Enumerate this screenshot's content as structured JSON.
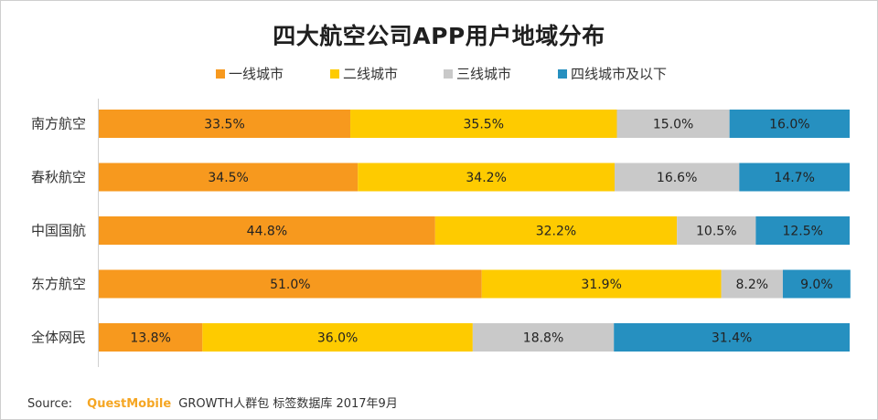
{
  "chart_data": {
    "type": "bar",
    "orientation": "horizontal",
    "stacked": true,
    "normalized": true,
    "title": "四大航空公司APP用户地域分布",
    "xlabel": "",
    "ylabel": "",
    "xlim": [
      0,
      100
    ],
    "grid": false,
    "legend_position": "top",
    "categories": [
      "南方航空",
      "春秋航空",
      "中国国航",
      "东方航空",
      "全体网民"
    ],
    "series": [
      {
        "name": "一线城市",
        "color": "#f7991e",
        "values": [
          33.5,
          34.5,
          44.8,
          51.0,
          13.8
        ]
      },
      {
        "name": "二线城市",
        "color": "#fecb00",
        "values": [
          35.5,
          34.2,
          32.2,
          31.9,
          36.0
        ]
      },
      {
        "name": "三线城市",
        "color": "#c9c9c9",
        "values": [
          15.0,
          16.6,
          10.5,
          8.2,
          18.8
        ]
      },
      {
        "name": "四线城市及以下",
        "color": "#2690c0",
        "values": [
          16.0,
          14.7,
          12.5,
          9.0,
          31.4
        ]
      }
    ],
    "labels": [
      [
        "33.5%",
        "35.5%",
        "15.0%",
        "16.0%"
      ],
      [
        "34.5%",
        "34.2%",
        "16.6%",
        "14.7%"
      ],
      [
        "44.8%",
        "32.2%",
        "10.5%",
        "12.5%"
      ],
      [
        "51.0%",
        "31.9%",
        "8.2%",
        "9.0%"
      ],
      [
        "13.8%",
        "36.0%",
        "18.8%",
        "31.4%"
      ]
    ]
  },
  "source": {
    "prefix": "Source:",
    "brand": "QuestMobile",
    "text": "GROWTH人群包 标签数据库 2017年9月"
  }
}
